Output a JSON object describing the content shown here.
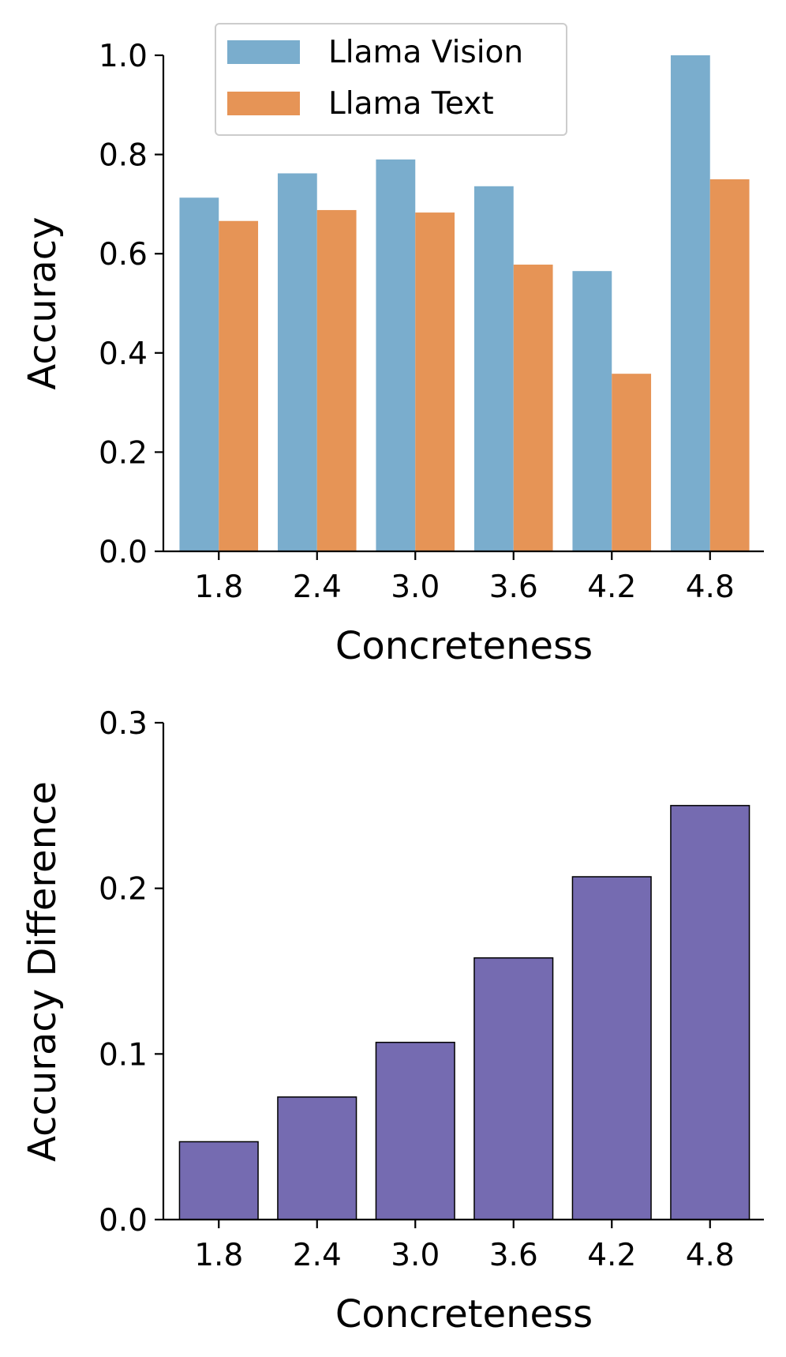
{
  "chart_data": [
    {
      "type": "bar",
      "categories": [
        "1.8",
        "2.4",
        "3.0",
        "3.6",
        "4.2",
        "4.8"
      ],
      "series": [
        {
          "name": "Llama Vision",
          "color": "#7aadcd",
          "values": [
            0.713,
            0.762,
            0.79,
            0.736,
            0.565,
            1.0
          ]
        },
        {
          "name": "Llama Text",
          "color": "#e69456",
          "values": [
            0.666,
            0.688,
            0.683,
            0.578,
            0.358,
            0.75
          ]
        }
      ],
      "xlabel": "Concreteness",
      "ylabel": "Accuracy",
      "ylim": [
        0,
        1.0
      ],
      "yticks": [
        "0.0",
        "0.2",
        "0.4",
        "0.6",
        "0.8",
        "1.0"
      ],
      "legend": "top-left",
      "grid": false
    },
    {
      "type": "bar",
      "categories": [
        "1.8",
        "2.4",
        "3.0",
        "3.6",
        "4.2",
        "4.8"
      ],
      "series": [
        {
          "name": "Accuracy Difference",
          "color": "#756bb1",
          "values": [
            0.047,
            0.074,
            0.107,
            0.158,
            0.207,
            0.25
          ]
        }
      ],
      "xlabel": "Concreteness",
      "ylabel": "Accuracy Difference",
      "ylim": [
        0,
        0.3
      ],
      "yticks": [
        "0.0",
        "0.1",
        "0.2",
        "0.3"
      ],
      "grid": false
    }
  ]
}
